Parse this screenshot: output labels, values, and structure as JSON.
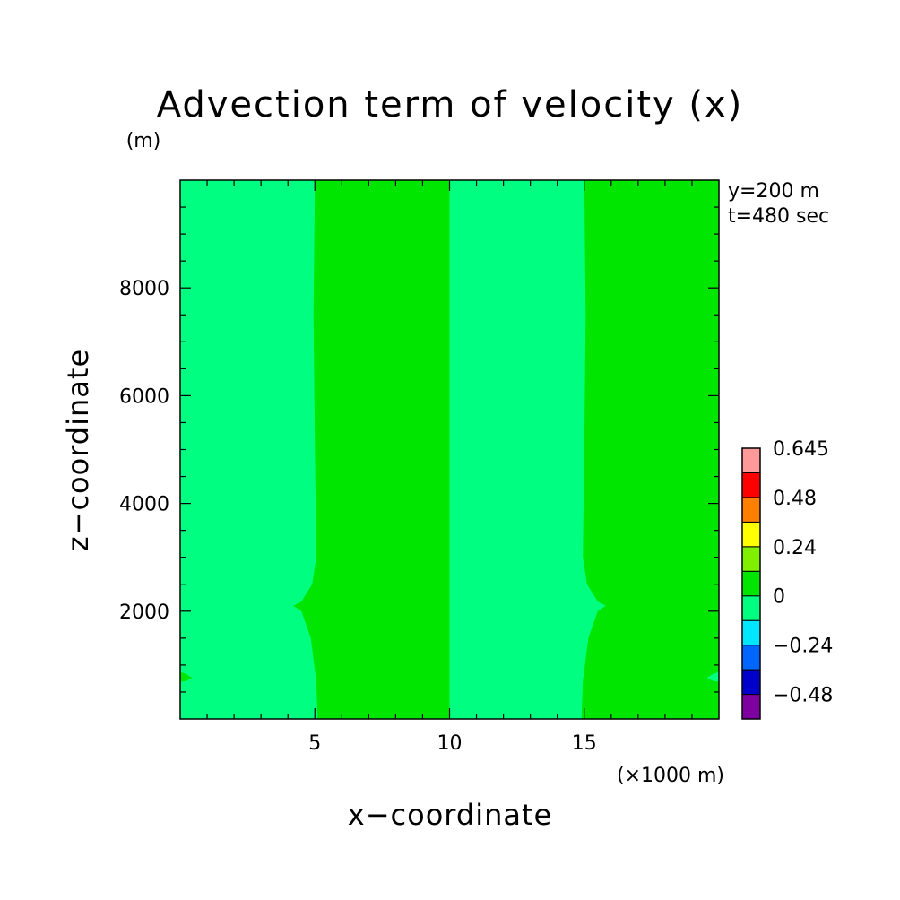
{
  "chart_data": {
    "type": "heatmap",
    "title": "Advection term of velocity (x)",
    "xlabel": "x−coordinate",
    "ylabel": "z−coordinate",
    "x_unit": "(×1000 m)",
    "y_unit": "(m)",
    "annotations": [
      "y=200 m",
      "t=480 sec"
    ],
    "xlim": [
      0,
      20
    ],
    "ylim": [
      0,
      10000
    ],
    "x_ticks": [
      5,
      10,
      15
    ],
    "y_ticks": [
      2000,
      4000,
      6000,
      8000
    ],
    "x_tick_labels": [
      "5",
      "10",
      "15"
    ],
    "y_tick_labels": [
      "2000",
      "4000",
      "6000",
      "8000"
    ],
    "background_level_color": "#00ff80",
    "regions": [
      {
        "level": "0 to 0.12",
        "color": "#00e600",
        "outline": [
          [
            5.0,
            10000
          ],
          [
            4.95,
            7500
          ],
          [
            5.0,
            5000
          ],
          [
            5.05,
            3000
          ],
          [
            4.9,
            2500
          ],
          [
            4.5,
            2180
          ],
          [
            4.2,
            2100
          ],
          [
            4.5,
            2000
          ],
          [
            4.85,
            1500
          ],
          [
            5.05,
            700
          ],
          [
            5.1,
            0
          ],
          [
            10.0,
            0
          ],
          [
            10.0,
            10000
          ]
        ]
      },
      {
        "level": "0 to 0.12",
        "color": "#00e600",
        "outline": [
          [
            15.0,
            10000
          ],
          [
            15.05,
            7500
          ],
          [
            15.0,
            5000
          ],
          [
            14.95,
            3000
          ],
          [
            15.1,
            2500
          ],
          [
            15.5,
            2180
          ],
          [
            15.8,
            2100
          ],
          [
            15.5,
            2000
          ],
          [
            15.15,
            1500
          ],
          [
            14.95,
            700
          ],
          [
            14.9,
            0
          ],
          [
            20.0,
            0
          ],
          [
            20.0,
            10000
          ]
        ]
      },
      {
        "level": "0 to 0.12",
        "color": "#00e600",
        "outline": [
          [
            0,
            870
          ],
          [
            0.2,
            840
          ],
          [
            0.45,
            760
          ],
          [
            0.2,
            700
          ],
          [
            0,
            690
          ]
        ]
      },
      {
        "level": "-0.12 to 0",
        "color": "#00ff80",
        "outline": [
          [
            20,
            870
          ],
          [
            19.8,
            840
          ],
          [
            19.55,
            760
          ],
          [
            19.8,
            700
          ],
          [
            20,
            690
          ]
        ]
      }
    ],
    "colorbar": {
      "levels": [
        -0.48,
        -0.36,
        -0.24,
        -0.12,
        0,
        0.12,
        0.24,
        0.36,
        0.48,
        0.6,
        0.645
      ],
      "colors": [
        "#7f00a0",
        "#0000cc",
        "#0066ff",
        "#00e6ff",
        "#00ff80",
        "#00e600",
        "#80f000",
        "#ffff00",
        "#ff8000",
        "#ff0000",
        "#ff9999"
      ],
      "tick_labels": [
        {
          "value": -0.48,
          "label": "−0.48"
        },
        {
          "value": -0.24,
          "label": "−0.24"
        },
        {
          "value": 0,
          "label": "0"
        },
        {
          "value": 0.24,
          "label": "0.24"
        },
        {
          "value": 0.48,
          "label": "0.48"
        },
        {
          "value": 0.645,
          "label": "0.645"
        }
      ]
    }
  }
}
